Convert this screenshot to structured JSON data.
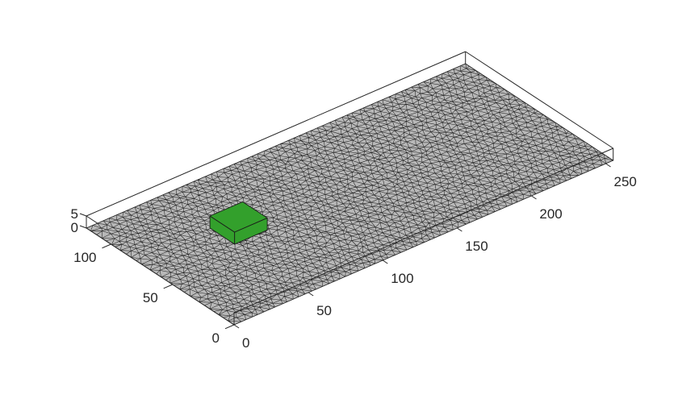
{
  "figure": {
    "type": "3d-mesh-plot",
    "mesh_face_color": "#b8b8b8",
    "mesh_edge_color": "#1e1e1e",
    "block_color": "#33a02c",
    "box_color": "#262626"
  },
  "axes": {
    "x": {
      "range": [
        0,
        255
      ],
      "ticks": [
        0,
        50,
        100,
        150,
        200,
        250
      ],
      "tick_labels": [
        "0",
        "50",
        "100",
        "150",
        "200",
        "250"
      ]
    },
    "y": {
      "range": [
        0,
        120
      ],
      "ticks": [
        0,
        50,
        100
      ],
      "tick_labels": [
        "0",
        "50",
        "100"
      ]
    },
    "z": {
      "range": [
        0,
        5
      ],
      "ticks": [
        0,
        5
      ],
      "tick_labels": [
        "0",
        "5"
      ]
    }
  },
  "block": {
    "x": [
      50,
      72
    ],
    "y": [
      60,
      80
    ],
    "z": [
      0,
      5
    ]
  }
}
